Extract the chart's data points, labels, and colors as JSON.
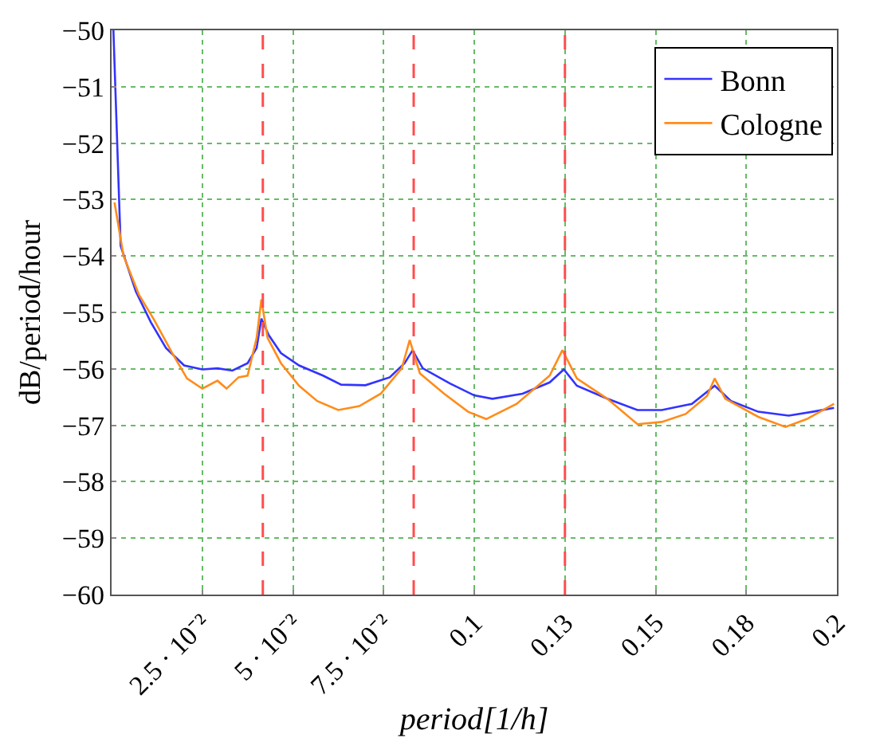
{
  "chart_data": {
    "type": "line",
    "xlabel": "period[1/h]",
    "ylabel": "dB/period/hour",
    "xlim": [
      0,
      0.2
    ],
    "ylim": [
      -60,
      -50
    ],
    "xticks": [
      {
        "value": 0.025,
        "label": "2.5 · 10⁻²"
      },
      {
        "value": 0.05,
        "label": "5 · 10⁻²"
      },
      {
        "value": 0.075,
        "label": "7.5 · 10⁻²"
      },
      0.1,
      {
        "value": 0.125,
        "label": "0.13"
      },
      0.15,
      {
        "value": 0.175,
        "label": "0.18"
      },
      0.2
    ],
    "yticks": [
      -60,
      -59,
      -58,
      -57,
      -56,
      -55,
      -54,
      -53,
      -52,
      -51,
      -50
    ],
    "grid": true,
    "legend": "top right",
    "marker": "none",
    "line_style": "solid",
    "ref_lines": [
      {
        "axis": "x",
        "value": 0.0417,
        "color": "#ff4d4d",
        "line_style": "dashed"
      },
      {
        "axis": "x",
        "value": 0.0833,
        "color": "#ff4d4d",
        "line_style": "dashed"
      },
      {
        "axis": "x",
        "value": 0.125,
        "color": "#ff4d4d",
        "line_style": "dashed"
      }
    ],
    "series": [
      {
        "name": "Bonn",
        "color": "#3333ff",
        "x": [
          0.0005,
          0.0025,
          0.0067,
          0.0108,
          0.015,
          0.02,
          0.025,
          0.0292,
          0.0333,
          0.0375,
          0.04,
          0.0413,
          0.0433,
          0.0467,
          0.0517,
          0.0583,
          0.0633,
          0.07,
          0.0767,
          0.0808,
          0.083,
          0.0858,
          0.0933,
          0.1,
          0.105,
          0.1133,
          0.1208,
          0.1247,
          0.1283,
          0.1367,
          0.145,
          0.1517,
          0.16,
          0.1663,
          0.1708,
          0.1783,
          0.1867,
          0.1933,
          0.1992
        ],
        "values": [
          -50,
          -53.82,
          -54.63,
          -55.17,
          -55.63,
          -55.94,
          -56.01,
          -55.99,
          -56.03,
          -55.9,
          -55.63,
          -55.11,
          -55.4,
          -55.72,
          -55.94,
          -56.12,
          -56.28,
          -56.29,
          -56.15,
          -55.9,
          -55.67,
          -55.99,
          -56.26,
          -56.47,
          -56.53,
          -56.44,
          -56.24,
          -56.01,
          -56.3,
          -56.53,
          -56.73,
          -56.73,
          -56.62,
          -56.3,
          -56.57,
          -56.76,
          -56.83,
          -56.76,
          -56.69
        ]
      },
      {
        "name": "Cologne",
        "color": "#ff8c1a",
        "x": [
          0.0008,
          0.0033,
          0.0075,
          0.0117,
          0.0167,
          0.0208,
          0.025,
          0.0292,
          0.0317,
          0.035,
          0.0375,
          0.04,
          0.0413,
          0.043,
          0.0467,
          0.0517,
          0.0567,
          0.0625,
          0.0683,
          0.0742,
          0.08,
          0.0822,
          0.085,
          0.0917,
          0.0983,
          0.1033,
          0.1117,
          0.1208,
          0.1243,
          0.1283,
          0.1367,
          0.145,
          0.1517,
          0.1583,
          0.1642,
          0.1663,
          0.1692,
          0.1783,
          0.1858,
          0.1917,
          0.1992
        ],
        "values": [
          -53.05,
          -54,
          -54.68,
          -55.13,
          -55.72,
          -56.17,
          -56.35,
          -56.21,
          -56.35,
          -56.15,
          -56.12,
          -55.45,
          -54.77,
          -55.45,
          -55.9,
          -56.3,
          -56.57,
          -56.73,
          -56.66,
          -56.44,
          -55.99,
          -55.49,
          -56.08,
          -56.44,
          -56.76,
          -56.89,
          -56.62,
          -56.12,
          -55.67,
          -56.17,
          -56.53,
          -56.98,
          -56.94,
          -56.8,
          -56.48,
          -56.17,
          -56.53,
          -56.85,
          -57.03,
          -56.89,
          -56.62
        ]
      }
    ]
  }
}
